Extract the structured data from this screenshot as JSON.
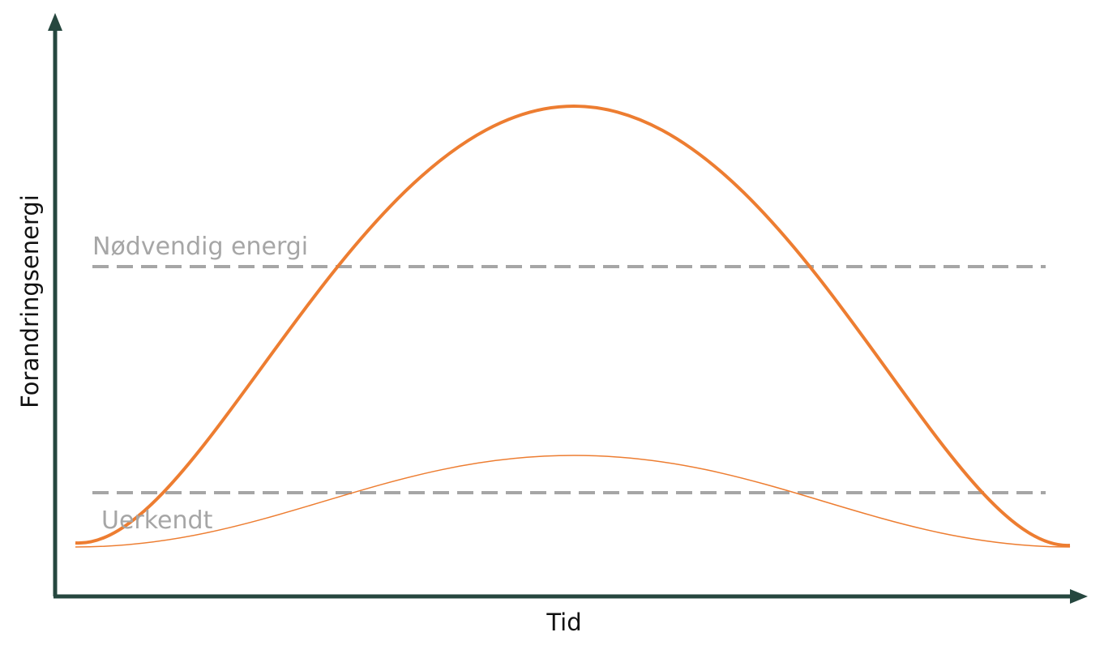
{
  "axes": {
    "y_label": "Forandringsenergi",
    "x_label": "Tid"
  },
  "levels": {
    "required": {
      "label": "Nødvendig energi"
    },
    "unrecognized": {
      "label": "Uerkendt"
    }
  },
  "colors": {
    "axis": "#26473f",
    "curve": "#ed7d31",
    "reference_line": "#a6a6a6",
    "label_text": "#a6a6a6",
    "axis_label_text": "#111111"
  }
}
